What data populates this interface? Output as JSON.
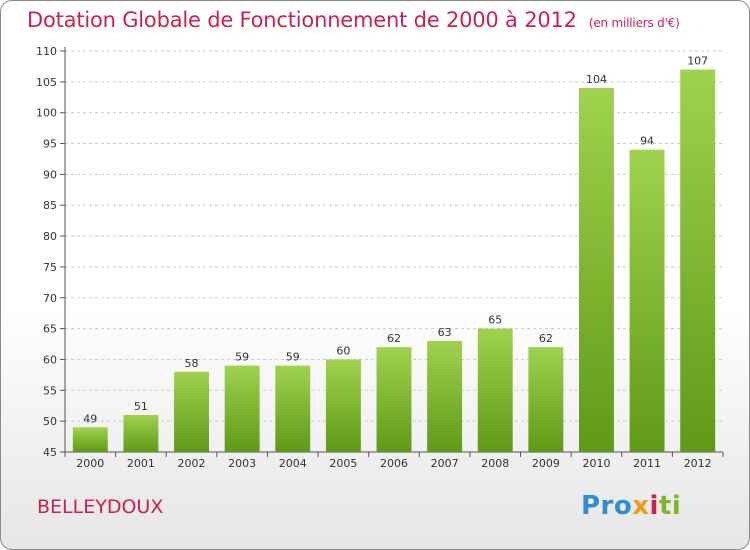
{
  "header": {
    "title": "Dotation Globale de Fonctionnement de 2000 à 2012",
    "unit": "(en milliers d'€)"
  },
  "footer": {
    "commune": "BELLEYDOUX",
    "logo": [
      "Pro",
      "x",
      "i",
      "ti"
    ]
  },
  "colors": {
    "title": "#c8224f",
    "bar_top": "#9fd24f",
    "bar_bottom": "#5f9a16",
    "grid": "#c8c8c8"
  },
  "chart_data": {
    "type": "bar",
    "categories": [
      "2000",
      "2001",
      "2002",
      "2003",
      "2004",
      "2005",
      "2006",
      "2007",
      "2008",
      "2009",
      "2010",
      "2011",
      "2012"
    ],
    "values": [
      49,
      51,
      58,
      59,
      59,
      60,
      62,
      63,
      65,
      62,
      104,
      94,
      107
    ],
    "title": "Dotation Globale de Fonctionnement de 2000 à 2012",
    "ylim": [
      45,
      110
    ],
    "yticks": [
      45,
      50,
      55,
      60,
      65,
      70,
      75,
      80,
      85,
      90,
      95,
      100,
      105,
      110
    ],
    "grid": true,
    "legend": "none"
  }
}
